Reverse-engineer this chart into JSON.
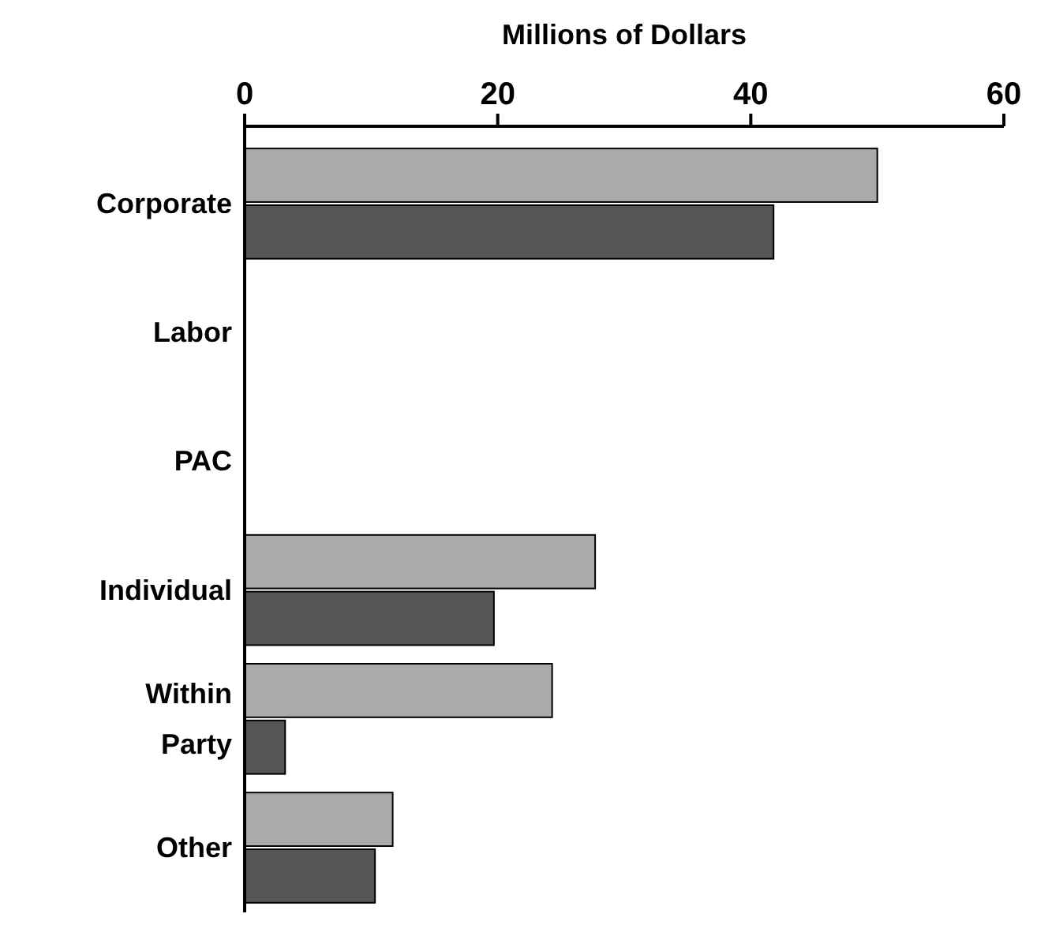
{
  "chart_data": {
    "type": "bar",
    "orientation": "horizontal",
    "xlabel": "Millions of Dollars",
    "categories": [
      "Corporate",
      "Labor",
      "PAC",
      "Individual",
      "Within Party",
      "Other"
    ],
    "series": [
      {
        "color": "#aaaaaa",
        "values": [
          50,
          null,
          null,
          27.7,
          24.3,
          11.7
        ]
      },
      {
        "color": "#555555",
        "values": [
          41.8,
          null,
          null,
          19.7,
          3.2,
          10.3
        ]
      }
    ],
    "xlim": [
      0,
      60
    ],
    "xticks": [
      0,
      20,
      40,
      60
    ]
  }
}
